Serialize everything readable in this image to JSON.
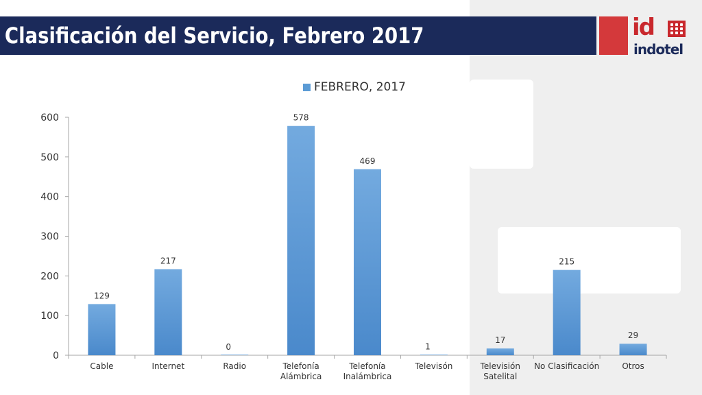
{
  "slide": {
    "title": "Clasificación del Servicio, Febrero 2017",
    "title_bar_color": "#1b2a5a",
    "accent_color": "#d4393b"
  },
  "logo": {
    "mark": "id",
    "name": "indotel"
  },
  "chart_data": {
    "type": "bar",
    "categories": [
      "Cable",
      "Internet",
      "Radio",
      "Telefonía Alámbrica",
      "Telefonía Inalámbrica",
      "Televisón",
      "Televisión Satelital",
      "No Clasificación",
      "Otros"
    ],
    "category_lines": [
      [
        "Cable"
      ],
      [
        "Internet"
      ],
      [
        "Radio"
      ],
      [
        "Telefonía",
        "Alámbrica"
      ],
      [
        "Telefonía",
        "Inalámbrica"
      ],
      [
        "Televisón"
      ],
      [
        "Televisión",
        "Satelital"
      ],
      [
        "No Clasificación"
      ],
      [
        "Otros"
      ]
    ],
    "series": [
      {
        "name": "FEBRERO, 2017",
        "values": [
          129,
          217,
          0,
          578,
          469,
          1,
          17,
          215,
          29
        ],
        "color": "#5b9bd5"
      }
    ],
    "y_ticks": [
      0,
      100,
      200,
      300,
      400,
      500,
      600
    ],
    "ylim": [
      0,
      600
    ],
    "grid": false,
    "legend_position": "top-center"
  }
}
